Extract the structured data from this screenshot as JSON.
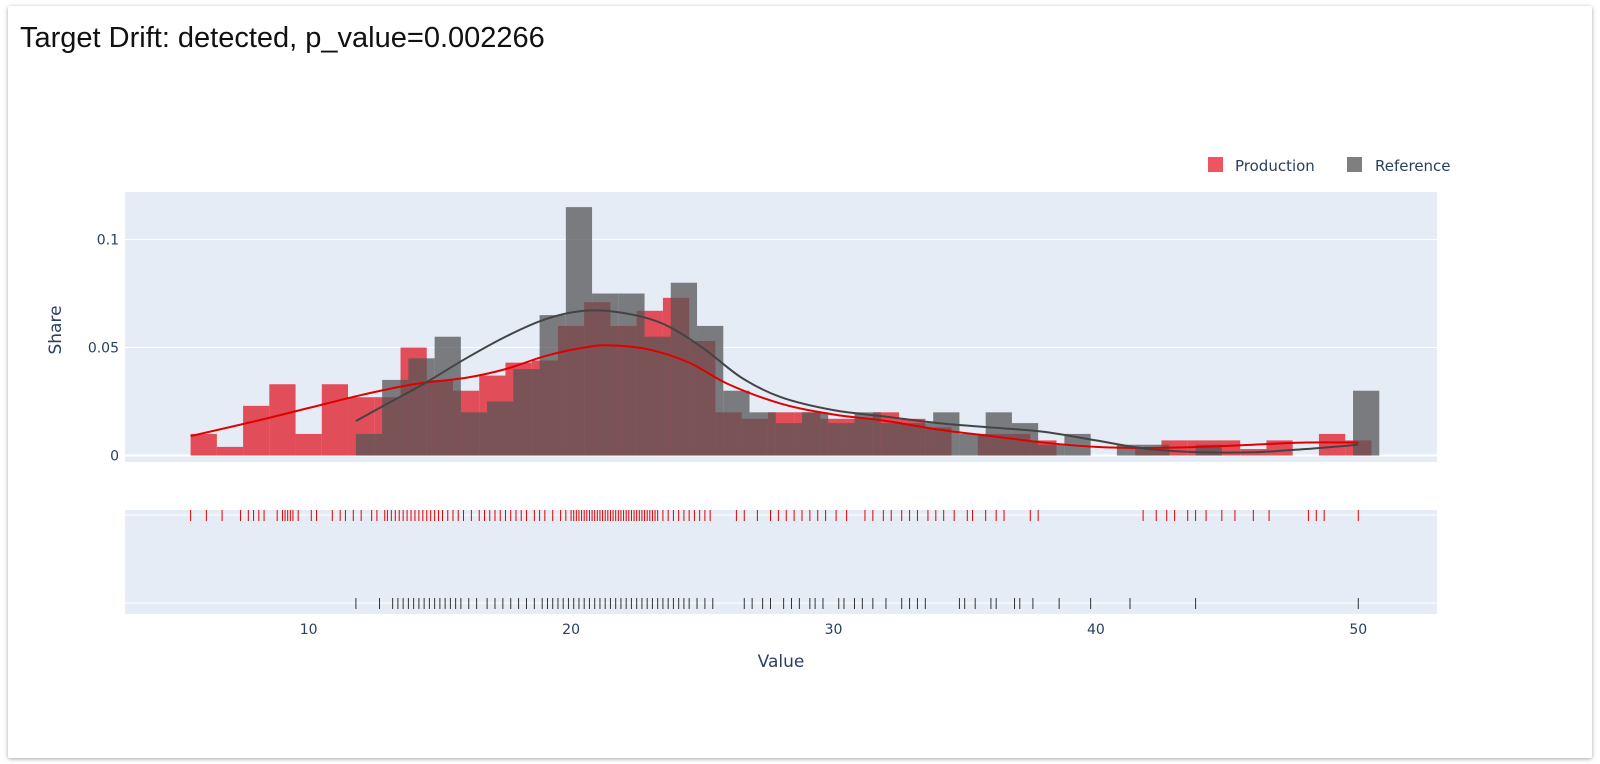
{
  "title": "Target Drift: detected, p_value=0.002266",
  "chart_data": {
    "type": "bar",
    "subtype": "overlaid histogram with density curves and rug plot",
    "xlabel": "Value",
    "ylabel": "Share",
    "xlim": [
      3,
      53
    ],
    "ylim": [
      -0.003,
      0.122
    ],
    "xticks": [
      10,
      20,
      30,
      40,
      50
    ],
    "yticks": [
      {
        "v": 0,
        "label": "0"
      },
      {
        "v": 0.05,
        "label": "0.05"
      },
      {
        "v": 0.1,
        "label": "0.1"
      }
    ],
    "legend": {
      "placement": "top-right"
    },
    "grid": true,
    "series": [
      {
        "name": "Production",
        "color": "#e0313c",
        "bins": [
          {
            "x0": 5.5,
            "x1": 6.5,
            "y": 0.01
          },
          {
            "x0": 6.5,
            "x1": 7.5,
            "y": 0.004
          },
          {
            "x0": 7.5,
            "x1": 8.5,
            "y": 0.023
          },
          {
            "x0": 8.5,
            "x1": 9.5,
            "y": 0.033
          },
          {
            "x0": 9.5,
            "x1": 10.5,
            "y": 0.01
          },
          {
            "x0": 10.5,
            "x1": 11.5,
            "y": 0.033
          },
          {
            "x0": 11.5,
            "x1": 12.5,
            "y": 0.027
          },
          {
            "x0": 12.5,
            "x1": 13.5,
            "y": 0.027
          },
          {
            "x0": 13.5,
            "x1": 14.5,
            "y": 0.05
          },
          {
            "x0": 14.5,
            "x1": 15.5,
            "y": 0.035
          },
          {
            "x0": 15.5,
            "x1": 16.5,
            "y": 0.03
          },
          {
            "x0": 16.5,
            "x1": 17.5,
            "y": 0.037
          },
          {
            "x0": 17.5,
            "x1": 18.5,
            "y": 0.043
          },
          {
            "x0": 18.5,
            "x1": 19.5,
            "y": 0.044
          },
          {
            "x0": 19.5,
            "x1": 20.5,
            "y": 0.06
          },
          {
            "x0": 20.5,
            "x1": 21.5,
            "y": 0.071
          },
          {
            "x0": 21.5,
            "x1": 22.5,
            "y": 0.06
          },
          {
            "x0": 22.5,
            "x1": 23.5,
            "y": 0.067
          },
          {
            "x0": 23.5,
            "x1": 24.5,
            "y": 0.073
          },
          {
            "x0": 24.5,
            "x1": 25.5,
            "y": 0.053
          },
          {
            "x0": 25.5,
            "x1": 26.5,
            "y": 0.02
          },
          {
            "x0": 26.5,
            "x1": 27.5,
            "y": 0.017
          },
          {
            "x0": 27.5,
            "x1": 28.5,
            "y": 0.02
          },
          {
            "x0": 28.5,
            "x1": 29.5,
            "y": 0.02
          },
          {
            "x0": 29.5,
            "x1": 30.5,
            "y": 0.017
          },
          {
            "x0": 30.5,
            "x1": 31.5,
            "y": 0.017
          },
          {
            "x0": 31.5,
            "x1": 32.5,
            "y": 0.02
          },
          {
            "x0": 32.5,
            "x1": 33.5,
            "y": 0.017
          },
          {
            "x0": 33.5,
            "x1": 34.5,
            "y": 0.013
          },
          {
            "x0": 35.5,
            "x1": 36.5,
            "y": 0.01
          },
          {
            "x0": 36.5,
            "x1": 37.5,
            "y": 0.01
          },
          {
            "x0": 37.5,
            "x1": 38.5,
            "y": 0.007
          },
          {
            "x0": 41.5,
            "x1": 42.5,
            "y": 0.003
          },
          {
            "x0": 42.5,
            "x1": 43.5,
            "y": 0.007
          },
          {
            "x0": 43.5,
            "x1": 44.5,
            "y": 0.007
          },
          {
            "x0": 44.5,
            "x1": 45.5,
            "y": 0.007
          },
          {
            "x0": 45.5,
            "x1": 46.5,
            "y": 0.003
          },
          {
            "x0": 46.5,
            "x1": 47.5,
            "y": 0.007
          },
          {
            "x0": 48.5,
            "x1": 49.5,
            "y": 0.01
          },
          {
            "x0": 49.5,
            "x1": 50.5,
            "y": 0.007
          }
        ],
        "density": [
          {
            "x": 5.5,
            "y": 0.009
          },
          {
            "x": 8,
            "y": 0.016
          },
          {
            "x": 10,
            "y": 0.022
          },
          {
            "x": 12,
            "y": 0.028
          },
          {
            "x": 14,
            "y": 0.033
          },
          {
            "x": 16,
            "y": 0.036
          },
          {
            "x": 17.5,
            "y": 0.04
          },
          {
            "x": 19,
            "y": 0.046
          },
          {
            "x": 20.5,
            "y": 0.05
          },
          {
            "x": 21.5,
            "y": 0.051
          },
          {
            "x": 23,
            "y": 0.049
          },
          {
            "x": 24.5,
            "y": 0.043
          },
          {
            "x": 26,
            "y": 0.033
          },
          {
            "x": 28,
            "y": 0.024
          },
          {
            "x": 30,
            "y": 0.019
          },
          {
            "x": 32,
            "y": 0.016
          },
          {
            "x": 34,
            "y": 0.012
          },
          {
            "x": 36,
            "y": 0.009
          },
          {
            "x": 38,
            "y": 0.006
          },
          {
            "x": 40,
            "y": 0.004
          },
          {
            "x": 42,
            "y": 0.0035
          },
          {
            "x": 44,
            "y": 0.004
          },
          {
            "x": 46,
            "y": 0.005
          },
          {
            "x": 48,
            "y": 0.006
          },
          {
            "x": 50,
            "y": 0.006
          }
        ],
        "rug": [
          5.5,
          6.1,
          6.7,
          7.4,
          7.7,
          7.9,
          8.1,
          8.3,
          8.8,
          9,
          9.1,
          9.2,
          9.3,
          9.4,
          9.6,
          10.1,
          10.3,
          10.9,
          11.2,
          11.4,
          11.7,
          12,
          12.4,
          12.6,
          12.9,
          13.0,
          13.15,
          13.3,
          13.45,
          13.6,
          13.75,
          13.9,
          14.05,
          14.2,
          14.35,
          14.5,
          14.65,
          14.8,
          14.95,
          15.1,
          15.3,
          15.5,
          15.7,
          15.9,
          16.2,
          16.5,
          16.7,
          16.9,
          17.1,
          17.3,
          17.5,
          17.7,
          17.9,
          18.1,
          18.3,
          18.6,
          18.8,
          19.0,
          19.3,
          19.6,
          19.8,
          20.0,
          20.1,
          20.2,
          20.3,
          20.4,
          20.5,
          20.6,
          20.7,
          20.8,
          20.9,
          21.0,
          21.1,
          21.2,
          21.3,
          21.4,
          21.5,
          21.6,
          21.7,
          21.8,
          21.9,
          22.0,
          22.1,
          22.2,
          22.3,
          22.4,
          22.5,
          22.6,
          22.7,
          22.8,
          22.9,
          23.0,
          23.1,
          23.2,
          23.3,
          23.5,
          23.7,
          23.9,
          24.1,
          24.3,
          24.5,
          24.7,
          24.9,
          25.1,
          25.3,
          26.3,
          26.6,
          27.1,
          27.6,
          27.9,
          28.2,
          28.5,
          28.8,
          29.1,
          29.4,
          29.7,
          30.1,
          30.5,
          31.2,
          31.5,
          31.9,
          32.2,
          32.6,
          32.9,
          33.2,
          33.6,
          33.9,
          34.2,
          34.6,
          35.1,
          35.3,
          35.8,
          36.2,
          36.5,
          37.5,
          37.8,
          41.8,
          42.3,
          42.7,
          43,
          43.5,
          43.8,
          44.2,
          44.8,
          45.3,
          46,
          46.6,
          48.1,
          48.4,
          48.7,
          50
        ]
      },
      {
        "name": "Reference",
        "color": "#6b6b6b",
        "bins": [
          {
            "x0": 11.8,
            "x1": 12.8,
            "y": 0.01
          },
          {
            "x0": 12.8,
            "x1": 13.8,
            "y": 0.035
          },
          {
            "x0": 13.8,
            "x1": 14.8,
            "y": 0.045
          },
          {
            "x0": 14.8,
            "x1": 15.8,
            "y": 0.055
          },
          {
            "x0": 15.8,
            "x1": 16.8,
            "y": 0.02
          },
          {
            "x0": 16.8,
            "x1": 17.8,
            "y": 0.025
          },
          {
            "x0": 17.8,
            "x1": 18.8,
            "y": 0.04
          },
          {
            "x0": 18.8,
            "x1": 19.8,
            "y": 0.065
          },
          {
            "x0": 19.8,
            "x1": 20.8,
            "y": 0.115
          },
          {
            "x0": 20.8,
            "x1": 21.8,
            "y": 0.075
          },
          {
            "x0": 21.8,
            "x1": 22.8,
            "y": 0.075
          },
          {
            "x0": 22.8,
            "x1": 23.8,
            "y": 0.055
          },
          {
            "x0": 23.8,
            "x1": 24.8,
            "y": 0.08
          },
          {
            "x0": 24.8,
            "x1": 25.8,
            "y": 0.06
          },
          {
            "x0": 25.8,
            "x1": 26.8,
            "y": 0.03
          },
          {
            "x0": 26.8,
            "x1": 27.8,
            "y": 0.02
          },
          {
            "x0": 27.8,
            "x1": 28.8,
            "y": 0.015
          },
          {
            "x0": 28.8,
            "x1": 29.8,
            "y": 0.02
          },
          {
            "x0": 29.8,
            "x1": 30.8,
            "y": 0.015
          },
          {
            "x0": 30.8,
            "x1": 31.8,
            "y": 0.02
          },
          {
            "x0": 31.8,
            "x1": 32.8,
            "y": 0.015
          },
          {
            "x0": 32.8,
            "x1": 33.8,
            "y": 0.015
          },
          {
            "x0": 33.8,
            "x1": 34.8,
            "y": 0.02
          },
          {
            "x0": 34.8,
            "x1": 35.8,
            "y": 0.01
          },
          {
            "x0": 35.8,
            "x1": 36.8,
            "y": 0.02
          },
          {
            "x0": 36.8,
            "x1": 37.8,
            "y": 0.015
          },
          {
            "x0": 37.8,
            "x1": 38.8,
            "y": 0.005
          },
          {
            "x0": 38.8,
            "x1": 39.8,
            "y": 0.01
          },
          {
            "x0": 40.8,
            "x1": 41.8,
            "y": 0.005
          },
          {
            "x0": 41.8,
            "x1": 42.8,
            "y": 0.005
          },
          {
            "x0": 43.8,
            "x1": 44.8,
            "y": 0.005
          },
          {
            "x0": 49.8,
            "x1": 50.8,
            "y": 0.03
          }
        ],
        "density": [
          {
            "x": 11.8,
            "y": 0.016
          },
          {
            "x": 13,
            "y": 0.024
          },
          {
            "x": 14.5,
            "y": 0.034
          },
          {
            "x": 16,
            "y": 0.045
          },
          {
            "x": 17.5,
            "y": 0.055
          },
          {
            "x": 19,
            "y": 0.063
          },
          {
            "x": 20.5,
            "y": 0.067
          },
          {
            "x": 22,
            "y": 0.066
          },
          {
            "x": 23.5,
            "y": 0.061
          },
          {
            "x": 25,
            "y": 0.05
          },
          {
            "x": 26.5,
            "y": 0.036
          },
          {
            "x": 28,
            "y": 0.027
          },
          {
            "x": 30,
            "y": 0.021
          },
          {
            "x": 32,
            "y": 0.018
          },
          {
            "x": 34,
            "y": 0.015
          },
          {
            "x": 36,
            "y": 0.013
          },
          {
            "x": 38,
            "y": 0.011
          },
          {
            "x": 40,
            "y": 0.007
          },
          {
            "x": 42,
            "y": 0.003
          },
          {
            "x": 44,
            "y": 0.0015
          },
          {
            "x": 46,
            "y": 0.0015
          },
          {
            "x": 48,
            "y": 0.003
          },
          {
            "x": 50,
            "y": 0.005
          }
        ],
        "rug": [
          11.8,
          12.7,
          13.2,
          13.4,
          13.6,
          13.8,
          14,
          14.2,
          14.4,
          14.6,
          14.8,
          15,
          15.2,
          15.4,
          15.6,
          15.8,
          16.1,
          16.4,
          16.8,
          17.1,
          17.4,
          17.7,
          18,
          18.3,
          18.6,
          18.9,
          19.1,
          19.3,
          19.5,
          19.7,
          19.9,
          20.1,
          20.3,
          20.5,
          20.7,
          20.9,
          21.1,
          21.3,
          21.5,
          21.7,
          21.9,
          22.1,
          22.3,
          22.5,
          22.7,
          22.9,
          23.1,
          23.3,
          23.5,
          23.7,
          23.9,
          24.1,
          24.3,
          24.5,
          24.8,
          25.1,
          25.4,
          26.6,
          26.9,
          27.3,
          27.6,
          28.1,
          28.4,
          28.7,
          29.1,
          29.3,
          29.6,
          30.2,
          30.4,
          30.8,
          31.1,
          31.5,
          32,
          32.6,
          32.9,
          33.2,
          33.5,
          34.8,
          35,
          35.4,
          36,
          36.2,
          36.9,
          37.1,
          37.6,
          38.6,
          39.8,
          41.3,
          43.8,
          50
        ]
      }
    ]
  }
}
